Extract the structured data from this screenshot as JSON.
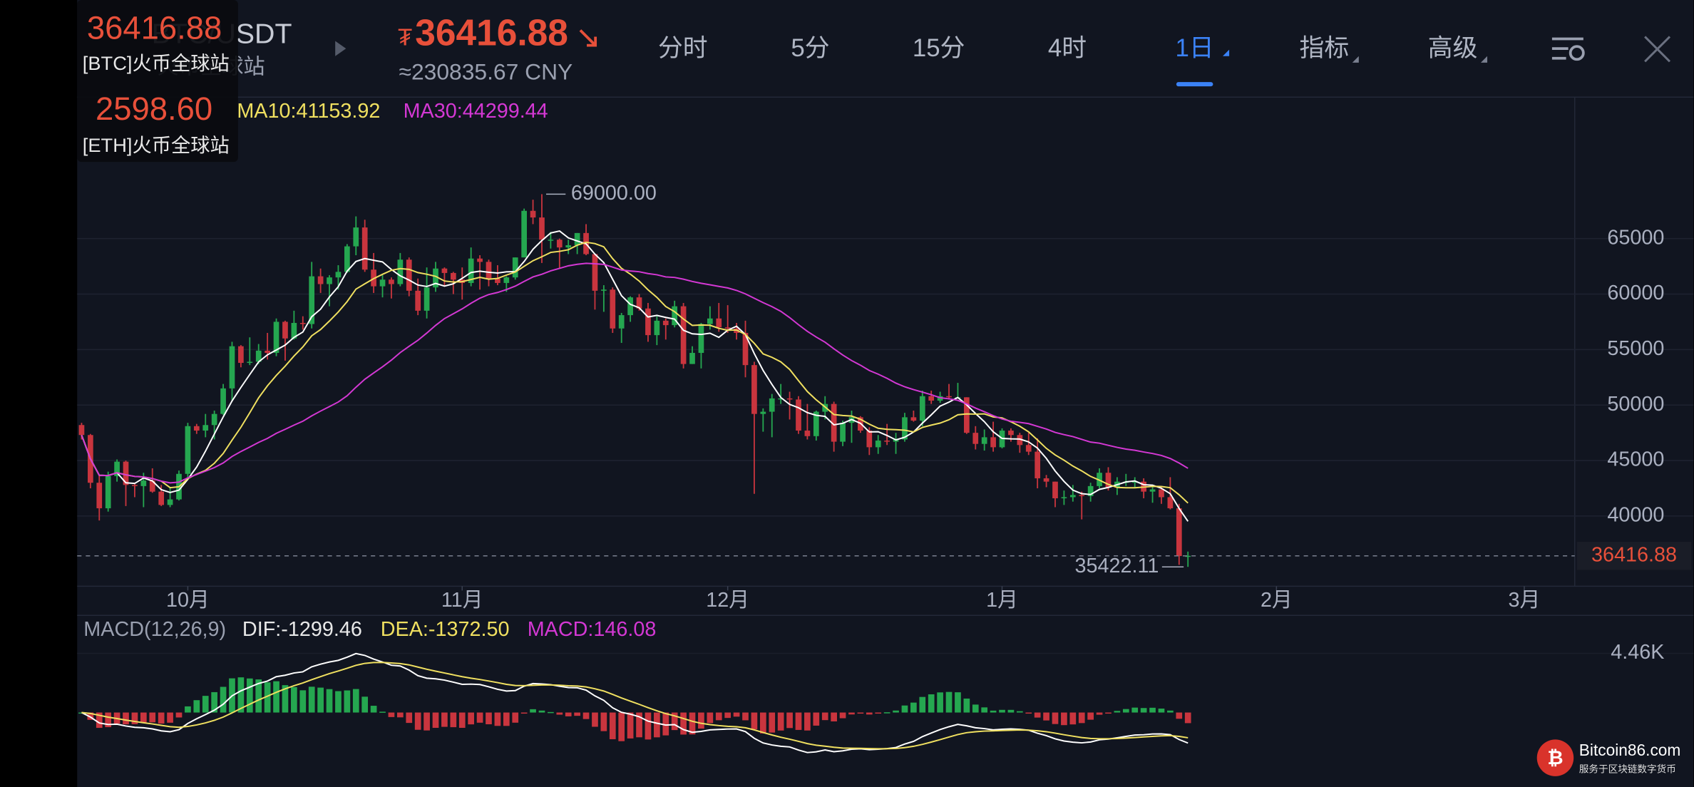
{
  "header": {
    "pair": "BTC/USDT",
    "exchange": "火币全球站",
    "currency_symbol": "₮",
    "price": "36416.88",
    "cny": "≈230835.67 CNY",
    "tabs": [
      "分时",
      "5分",
      "15分",
      "4时",
      "1日",
      "指标",
      "高级"
    ],
    "active_tab": 4
  },
  "ticker_overlay": [
    {
      "price": "36416.88",
      "source": "[BTC]火币全球站"
    },
    {
      "price": "2598.60",
      "source": "[ETH]火币全球站"
    }
  ],
  "ma_labels": [
    "MA10:41153.92",
    "MA30:44299.44"
  ],
  "macd_labels": [
    "MACD(12,26,9)",
    "DIF:-1299.46",
    "DEA:-1372.50",
    "MACD:146.08"
  ],
  "watermark": {
    "title": "Bitcoin86.com",
    "subtitle": "服务于区块链数字货币"
  },
  "chart_data": {
    "type": "candlestick",
    "up_color": "#25a750",
    "down_color": "#c9353e",
    "xlim": [
      -0.5,
      168.7
    ],
    "xticks": [
      {
        "value": 12,
        "label": "10月"
      },
      {
        "value": 43,
        "label": "11月"
      },
      {
        "value": 73,
        "label": "12月"
      },
      {
        "value": 104,
        "label": "1月"
      },
      {
        "value": 135,
        "label": "2月"
      },
      {
        "value": 163,
        "label": "3月"
      }
    ],
    "ylim": [
      33680,
      77740
    ],
    "yticks": [
      40000,
      45000,
      50000,
      55000,
      60000,
      65000
    ],
    "grid": true,
    "max_label": "69000.00",
    "min_label": "35422.11",
    "max_index": 52,
    "min_index": 125,
    "macd": {
      "ylim": [
        -5610,
        7320
      ],
      "yticks": [
        {
          "value": 4460,
          "label": "4.46K"
        }
      ]
    },
    "candles": [
      [
        48200,
        48400,
        46900,
        47300
      ],
      [
        47300,
        47400,
        42500,
        43000
      ],
      [
        43000,
        43600,
        39600,
        40700
      ],
      [
        40700,
        44000,
        40400,
        43600
      ],
      [
        43600,
        45100,
        43100,
        44900
      ],
      [
        44900,
        45000,
        40900,
        42800
      ],
      [
        42800,
        43000,
        41700,
        42700
      ],
      [
        42700,
        43900,
        40800,
        43200
      ],
      [
        43200,
        44300,
        42100,
        42200
      ],
      [
        42200,
        42800,
        40900,
        41000
      ],
      [
        41000,
        42600,
        40800,
        41500
      ],
      [
        41500,
        44100,
        41400,
        43800
      ],
      [
        43800,
        48400,
        43300,
        48100
      ],
      [
        48100,
        48300,
        47400,
        47700
      ],
      [
        47700,
        49200,
        47100,
        48200
      ],
      [
        48200,
        49500,
        46900,
        49200
      ],
      [
        49200,
        51900,
        49100,
        51500
      ],
      [
        51500,
        55700,
        50400,
        55300
      ],
      [
        55300,
        55400,
        53400,
        53800
      ],
      [
        53800,
        56100,
        53600,
        53900
      ],
      [
        53900,
        55500,
        53700,
        54900
      ],
      [
        54900,
        56500,
        54100,
        54700
      ],
      [
        54700,
        57800,
        54400,
        57500
      ],
      [
        57500,
        57600,
        54000,
        56000
      ],
      [
        56000,
        58500,
        55900,
        57400
      ],
      [
        57400,
        58000,
        56800,
        57300
      ],
      [
        57300,
        62900,
        56900,
        61600
      ],
      [
        61600,
        62300,
        60100,
        60900
      ],
      [
        60900,
        61700,
        58900,
        61500
      ],
      [
        61500,
        62600,
        60400,
        62000
      ],
      [
        62000,
        64500,
        61900,
        64300
      ],
      [
        64300,
        67000,
        63500,
        66000
      ],
      [
        66000,
        66700,
        62000,
        62200
      ],
      [
        62200,
        63700,
        60100,
        60700
      ],
      [
        60700,
        61700,
        59700,
        61300
      ],
      [
        61300,
        61500,
        59600,
        60900
      ],
      [
        60900,
        63700,
        60700,
        63100
      ],
      [
        63100,
        63300,
        59800,
        60300
      ],
      [
        60300,
        61400,
        58100,
        58500
      ],
      [
        58500,
        62400,
        57800,
        60600
      ],
      [
        60600,
        62900,
        60200,
        62300
      ],
      [
        62300,
        62400,
        60700,
        61900
      ],
      [
        61900,
        62000,
        60000,
        61300
      ],
      [
        61300,
        62400,
        59500,
        61000
      ],
      [
        61000,
        64200,
        60700,
        63200
      ],
      [
        63200,
        63500,
        60400,
        62900
      ],
      [
        62900,
        63100,
        60700,
        61400
      ],
      [
        61400,
        62600,
        60800,
        61000
      ],
      [
        61000,
        61600,
        60200,
        61500
      ],
      [
        61500,
        63300,
        61300,
        63300
      ],
      [
        63300,
        67700,
        63300,
        67500
      ],
      [
        67500,
        68500,
        66300,
        66900
      ],
      [
        66900,
        69000,
        62800,
        64900
      ],
      [
        64900,
        65600,
        64100,
        64900
      ],
      [
        64900,
        65000,
        62300,
        64200
      ],
      [
        64200,
        64900,
        63600,
        64400
      ],
      [
        64400,
        65500,
        63600,
        65500
      ],
      [
        65500,
        66300,
        63500,
        63600
      ],
      [
        63600,
        63600,
        58600,
        60300
      ],
      [
        60300,
        60800,
        58400,
        60400
      ],
      [
        60400,
        60600,
        56500,
        56900
      ],
      [
        56900,
        58300,
        55600,
        58100
      ],
      [
        58100,
        59800,
        57500,
        59700
      ],
      [
        59700,
        60000,
        58500,
        58700
      ],
      [
        58700,
        59200,
        55700,
        56300
      ],
      [
        56300,
        58000,
        55400,
        57600
      ],
      [
        57600,
        57800,
        55900,
        57200
      ],
      [
        57200,
        59400,
        57000,
        58900
      ],
      [
        58900,
        59200,
        53300,
        53700
      ],
      [
        53700,
        55300,
        53700,
        54700
      ],
      [
        54700,
        57400,
        53300,
        57300
      ],
      [
        57300,
        58900,
        56800,
        57800
      ],
      [
        57800,
        59200,
        56600,
        57000
      ],
      [
        57000,
        59000,
        56500,
        56900
      ],
      [
        56900,
        57400,
        55900,
        56500
      ],
      [
        56500,
        57600,
        52500,
        53600
      ],
      [
        53600,
        53900,
        42000,
        49200
      ],
      [
        49200,
        49700,
        47600,
        49400
      ],
      [
        49400,
        51000,
        47100,
        50600
      ],
      [
        50600,
        51900,
        50100,
        50600
      ],
      [
        50600,
        51200,
        48700,
        50500
      ],
      [
        50500,
        50800,
        47400,
        47700
      ],
      [
        47700,
        50100,
        46900,
        47200
      ],
      [
        47200,
        49500,
        46800,
        49400
      ],
      [
        49400,
        50800,
        48700,
        50100
      ],
      [
        50100,
        50300,
        45800,
        46700
      ],
      [
        46700,
        48600,
        46300,
        48400
      ],
      [
        48400,
        49500,
        46600,
        48900
      ],
      [
        48900,
        49000,
        47500,
        47700
      ],
      [
        47700,
        48000,
        45500,
        46200
      ],
      [
        46200,
        47300,
        45600,
        46800
      ],
      [
        46800,
        48300,
        46400,
        46700
      ],
      [
        46700,
        47500,
        45600,
        46900
      ],
      [
        46900,
        49300,
        46700,
        48900
      ],
      [
        48900,
        49500,
        48500,
        48600
      ],
      [
        48600,
        51300,
        48100,
        50800
      ],
      [
        50800,
        51300,
        50100,
        50400
      ],
      [
        50400,
        51200,
        50200,
        50800
      ],
      [
        50800,
        51900,
        50500,
        50700
      ],
      [
        50700,
        52000,
        50600,
        50700
      ],
      [
        50700,
        50700,
        47400,
        47500
      ],
      [
        47500,
        48100,
        46000,
        46500
      ],
      [
        46500,
        47800,
        45900,
        47100
      ],
      [
        47100,
        48500,
        45800,
        46200
      ],
      [
        46200,
        47900,
        46100,
        47700
      ],
      [
        47700,
        47900,
        46700,
        47300
      ],
      [
        47300,
        47500,
        45700,
        46400
      ],
      [
        46400,
        47500,
        45500,
        45800
      ],
      [
        45800,
        47000,
        42500,
        43400
      ],
      [
        43400,
        43700,
        42600,
        43100
      ],
      [
        43100,
        43100,
        40800,
        41600
      ],
      [
        41600,
        42300,
        41000,
        41700
      ],
      [
        41700,
        42800,
        41300,
        41900
      ],
      [
        41900,
        42200,
        39700,
        41800
      ],
      [
        41800,
        43000,
        41300,
        42700
      ],
      [
        42700,
        44300,
        42500,
        43900
      ],
      [
        43900,
        44400,
        42300,
        42600
      ],
      [
        42600,
        43500,
        41900,
        43100
      ],
      [
        43100,
        43800,
        42700,
        43100
      ],
      [
        43100,
        43500,
        42600,
        43100
      ],
      [
        43100,
        43400,
        41600,
        42200
      ],
      [
        42200,
        42800,
        41200,
        42400
      ],
      [
        42400,
        42600,
        41100,
        41700
      ],
      [
        41700,
        43500,
        40600,
        40700
      ],
      [
        40700,
        41100,
        35600,
        36400
      ],
      [
        36400,
        36800,
        35422.11,
        36416.88
      ]
    ]
  }
}
